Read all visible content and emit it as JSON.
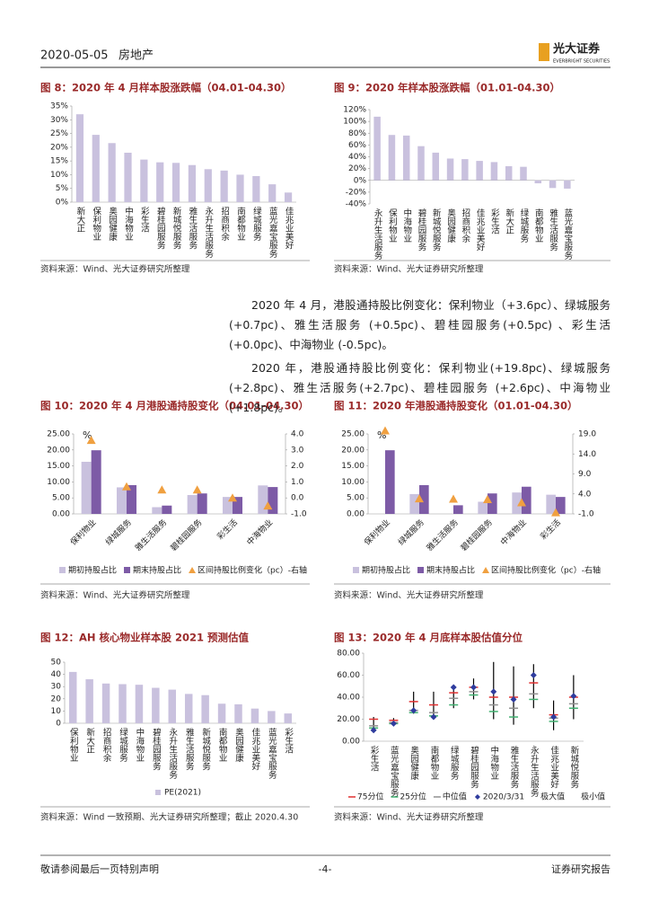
{
  "header": {
    "date": "2020-05-05",
    "sector": "房地产",
    "logo": "光大证券",
    "logo_en": "EVERBRIGHT SECURITIES"
  },
  "chart_data": [
    {
      "type": "bar",
      "title": "图 8：2020 年 4 月样本股涨跌幅（04.01-04.30）",
      "color": "#c9c1de",
      "categories": [
        "新大正",
        "保利物业",
        "奥园健康",
        "中海物业",
        "彩生活",
        "碧桂园服务",
        "新城悦服务",
        "雅生活服务",
        "永升生活服务",
        "招商积余",
        "南都物业",
        "绿城服务",
        "蓝光嘉宝服务",
        "佳兆业美好"
      ],
      "values": [
        32,
        24.5,
        21.5,
        18,
        15.5,
        14.5,
        14.3,
        13.5,
        12,
        11.5,
        10,
        9.5,
        6.5,
        3.5
      ],
      "ylim": [
        0,
        35
      ],
      "yticks": [
        {
          "value": 0,
          "label": "0%"
        },
        {
          "value": 5,
          "label": "5%"
        },
        {
          "value": 10,
          "label": "10%"
        },
        {
          "value": 15,
          "label": "15%"
        },
        {
          "value": 20,
          "label": "20%"
        },
        {
          "value": 25,
          "label": "25%"
        },
        {
          "value": 30,
          "label": "30%"
        },
        {
          "value": 35,
          "label": "35%"
        }
      ],
      "source": "资料来源：Wind、光大证券研究所整理"
    },
    {
      "type": "bar",
      "title": "图 9：2020 年样本股涨跌幅（01.01-04.30）",
      "color": "#c9c1de",
      "categories": [
        "永升生活服务",
        "保利物业",
        "中海物业",
        "碧桂园服务",
        "新城悦服务",
        "奥园健康",
        "招商积余",
        "佳兆业美好",
        "彩生活",
        "新大正",
        "绿城服务",
        "南都物业",
        "雅生活服务",
        "蓝光嘉宝服务"
      ],
      "values": [
        108,
        77,
        76,
        58,
        47,
        37,
        36,
        33,
        31,
        24,
        23,
        -5,
        -13,
        -14
      ],
      "ylim": [
        -40,
        120
      ],
      "yticks": [
        {
          "value": -40,
          "label": "-40%"
        },
        {
          "value": -20,
          "label": "-20%"
        },
        {
          "value": 0,
          "label": "0%"
        },
        {
          "value": 20,
          "label": "20%"
        },
        {
          "value": 40,
          "label": "40%"
        },
        {
          "value": 60,
          "label": "60%"
        },
        {
          "value": 80,
          "label": "80%"
        },
        {
          "value": 100,
          "label": "100%"
        },
        {
          "value": 120,
          "label": "120%"
        }
      ],
      "source": "资料来源：Wind、光大证券研究所整理"
    },
    {
      "type": "combo",
      "title": "图 10：2020 年 4 月港股通持股变化（04.01-04.30）",
      "y_unit": "%",
      "categories": [
        "保利物业",
        "绿城服务",
        "雅生活服务",
        "碧桂园服务",
        "彩生活",
        "中海物业"
      ],
      "series": [
        {
          "name": "期初持股占比",
          "color": "#c9c1de",
          "values": [
            16.3,
            8.3,
            2.1,
            5.9,
            5.3,
            8.9
          ]
        },
        {
          "name": "期末持股占比",
          "color": "#7d5ba6",
          "values": [
            19.9,
            9.0,
            2.6,
            6.4,
            5.3,
            8.4
          ]
        },
        {
          "name": "区间持股比例变化（pc）-右轴",
          "color": "#f0a040",
          "type": "scatter",
          "axis": "y2",
          "values": [
            3.6,
            0.7,
            0.5,
            0.5,
            0.0,
            -0.5
          ]
        }
      ],
      "ylim": [
        0,
        25
      ],
      "yticks": [
        {
          "value": 0,
          "label": "0.00"
        },
        {
          "value": 5,
          "label": "5.00"
        },
        {
          "value": 10,
          "label": "10.00"
        },
        {
          "value": 15,
          "label": "15.00"
        },
        {
          "value": 20,
          "label": "20.00"
        },
        {
          "value": 25,
          "label": "25.00"
        }
      ],
      "y2lim": [
        -1,
        4
      ],
      "y2ticks": [
        {
          "value": -1,
          "label": "-1.0"
        },
        {
          "value": 0,
          "label": "0.0"
        },
        {
          "value": 1,
          "label": "1.0"
        },
        {
          "value": 2,
          "label": "2.0"
        },
        {
          "value": 3,
          "label": "3.0"
        },
        {
          "value": 4,
          "label": "4.0"
        }
      ],
      "source": "资料来源：Wind、光大证券研究所整理"
    },
    {
      "type": "combo",
      "title": "图 11：2020 年港股通持股变化（01.01-04.30）",
      "y_unit": "%",
      "categories": [
        "保利物业",
        "绿城服务",
        "雅生活服务",
        "碧桂园服务",
        "中海物业",
        "彩生活"
      ],
      "series": [
        {
          "name": "期初持股占比",
          "color": "#c9c1de",
          "values": [
            0,
            6.2,
            0,
            3.8,
            6.7,
            6.0
          ]
        },
        {
          "name": "期末持股占比",
          "color": "#7d5ba6",
          "values": [
            19.9,
            9.0,
            2.7,
            6.4,
            8.5,
            5.3
          ]
        },
        {
          "name": "区间持股比例变化（pc）-右轴",
          "color": "#f0a040",
          "type": "scatter",
          "axis": "y2",
          "values": [
            19.8,
            2.8,
            2.7,
            2.6,
            1.8,
            -0.7
          ]
        }
      ],
      "ylim": [
        0,
        25
      ],
      "yticks": [
        {
          "value": 0,
          "label": "0.00"
        },
        {
          "value": 5,
          "label": "5.00"
        },
        {
          "value": 10,
          "label": "10.00"
        },
        {
          "value": 15,
          "label": "15.00"
        },
        {
          "value": 20,
          "label": "20.00"
        },
        {
          "value": 25,
          "label": "25.00"
        }
      ],
      "y2lim": [
        -1,
        19
      ],
      "y2ticks": [
        {
          "value": -1,
          "label": "-1.0"
        },
        {
          "value": 4,
          "label": "4.0"
        },
        {
          "value": 9,
          "label": "9.0"
        },
        {
          "value": 14,
          "label": "14.0"
        },
        {
          "value": 19,
          "label": "19.0"
        }
      ],
      "source": "资料来源：Wind、光大证券研究所整理"
    },
    {
      "type": "bar",
      "title": "图 12：AH 核心物业样本股 2021 预测估值",
      "color": "#c9c1de",
      "legend": "PE(2021)",
      "categories": [
        "保利物业",
        "新大正",
        "招商积余",
        "绿城服务",
        "中海物业",
        "碧桂园服务",
        "永升生活服务",
        "雅生活服务",
        "新城悦服务",
        "南都物业",
        "奥园健康",
        "佳兆业美好",
        "蓝光嘉宝服务",
        "彩生活"
      ],
      "values": [
        42,
        36,
        32.5,
        32,
        31.5,
        29,
        27.5,
        24,
        23,
        16,
        15.5,
        12,
        10,
        8
      ],
      "ylim": [
        0,
        50
      ],
      "yticks": [
        0,
        10,
        20,
        30,
        40,
        50
      ],
      "source": "资料来源：Wind 一致预期、光大证券研究所整理；截止 2020.4.30"
    },
    {
      "type": "range",
      "title": "图 13：2020 年 4 月底样本股估值分位",
      "categories": [
        "彩生活",
        "蓝光嘉宝服务",
        "奥园健康",
        "南都物业",
        "绿城服务",
        "碧桂园服务",
        "中海物业",
        "雅生活服务",
        "永升生活服务",
        "佳兆业美好",
        "新城悦服务"
      ],
      "series": [
        {
          "name": "75分位",
          "color": "#e03030",
          "marker": "dash",
          "values": [
            20,
            19,
            36,
            33,
            44,
            49,
            40,
            40,
            53,
            24,
            40
          ]
        },
        {
          "name": "25分位",
          "color": "#40b070",
          "marker": "dash",
          "values": [
            12,
            16,
            26,
            23,
            33,
            42,
            27,
            22,
            38,
            18,
            30
          ]
        },
        {
          "name": "中位值",
          "color": "#909090",
          "marker": "dash",
          "values": [
            14,
            17,
            28,
            26,
            39,
            45,
            33,
            30,
            43,
            21,
            34
          ]
        },
        {
          "name": "2020/3/31",
          "color": "#2f3c9e",
          "marker": "diamond",
          "values": [
            10,
            16,
            28,
            22,
            49,
            49,
            45,
            38,
            60,
            22,
            41
          ]
        },
        {
          "name": "极大值",
          "color": "#000000",
          "marker": "range-top",
          "values": [
            22,
            21,
            45,
            45,
            50,
            57,
            72,
            68,
            70,
            37,
            60
          ]
        },
        {
          "name": "极小值",
          "color": "#000000",
          "marker": "range-bottom",
          "values": [
            8,
            14,
            25,
            20,
            30,
            38,
            20,
            15,
            30,
            10,
            20
          ]
        }
      ],
      "ylim": [
        0,
        80
      ],
      "yticks": [
        {
          "value": 0,
          "label": "0.00"
        },
        {
          "value": 20,
          "label": "20.00"
        },
        {
          "value": 40,
          "label": "40.00"
        },
        {
          "value": 60,
          "label": "60.00"
        },
        {
          "value": 80,
          "label": "80.00"
        }
      ],
      "source": "资料来源：Wind、光大证券研究所整理"
    }
  ],
  "paragraphs": [
    "2020 年 4 月，港股通持股比例变化：保利物业（+3.6pc）、绿城服务(+0.7pc)、雅生活服务 (+0.5pc)、碧桂园服务(+0.5pc) 、彩生活 (+0.0pc)、中海物业 (-0.5pc)。",
    "2020 年，港股通持股比例变化：保利物业(+19.8pc)、绿城服务 (+2.8pc)、雅生活服务(+2.7pc)、碧桂园服务 (+2.6pc)、中海物业 (+1.8pc)。"
  ],
  "footer": {
    "left": "敬请参阅最后一页特别声明",
    "center": "-4-",
    "right": "证券研究报告"
  }
}
